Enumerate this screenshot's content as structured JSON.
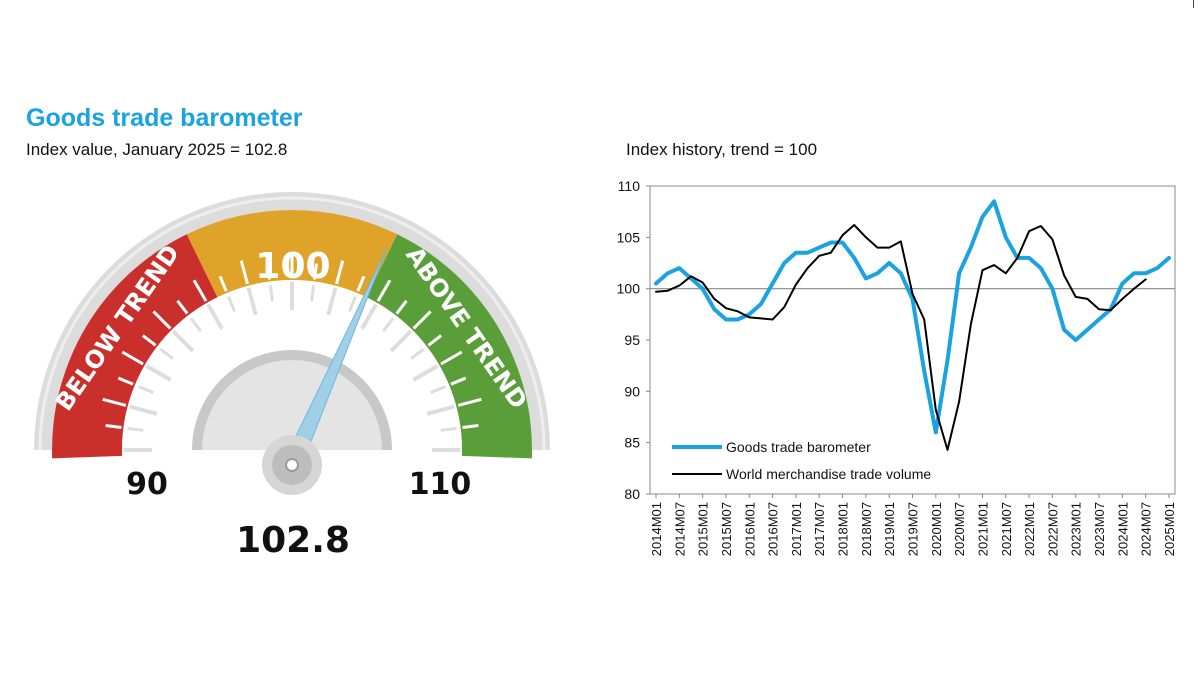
{
  "header": {
    "title": "Goods trade barometer",
    "subtitle": "Index value, January 2025 = 102.8"
  },
  "gauge": {
    "value": 102.8,
    "value_label": "102.8",
    "min_label": "90",
    "max_label": "110",
    "trend_label": "100",
    "below_label": "BELOW TREND",
    "above_label": "ABOVE TREND",
    "colors": {
      "below": "#c9302c",
      "trend": "#e0a32a",
      "above": "#5a9e3a",
      "needle": "#9fd0e8"
    }
  },
  "chart_data": {
    "type": "line",
    "title": "Index history, trend = 100",
    "ylim": [
      80,
      110
    ],
    "yticks": [
      "80",
      "85",
      "90",
      "95",
      "100",
      "105",
      "110"
    ],
    "reference_line": 100,
    "x_tick_labels": [
      "2014M01",
      "2014M07",
      "2015M01",
      "2015M07",
      "2016M01",
      "2016M07",
      "2017M01",
      "2017M07",
      "2018M01",
      "2018M07",
      "2019M01",
      "2019M07",
      "2020M01",
      "2020M07",
      "2021M01",
      "2021M07",
      "2022M01",
      "2022M07",
      "2023M01",
      "2023M07",
      "2024M01",
      "2024M07",
      "2025M01"
    ],
    "legend_position": "bottom-left",
    "series": [
      {
        "name": "Goods trade barometer",
        "color": "#1aa3e0",
        "x": [
          "2014M01",
          "2014M04",
          "2014M07",
          "2014M10",
          "2015M01",
          "2015M04",
          "2015M07",
          "2015M10",
          "2016M01",
          "2016M04",
          "2016M07",
          "2016M10",
          "2017M01",
          "2017M04",
          "2017M07",
          "2017M10",
          "2018M01",
          "2018M04",
          "2018M07",
          "2018M10",
          "2019M01",
          "2019M04",
          "2019M07",
          "2019M10",
          "2020M01",
          "2020M04",
          "2020M07",
          "2020M10",
          "2021M01",
          "2021M04",
          "2021M07",
          "2021M10",
          "2022M01",
          "2022M04",
          "2022M07",
          "2022M10",
          "2023M01",
          "2023M04",
          "2023M07",
          "2023M10",
          "2024M01",
          "2024M04",
          "2024M07",
          "2024M10",
          "2025M01"
        ],
        "values": [
          100.5,
          101.5,
          102.0,
          101.0,
          100.0,
          98.0,
          97.0,
          97.0,
          97.5,
          98.5,
          100.5,
          102.5,
          103.5,
          103.5,
          104.0,
          104.5,
          104.5,
          103.0,
          101.0,
          101.5,
          102.5,
          101.5,
          99.0,
          92.0,
          86.0,
          93.0,
          101.5,
          104.0,
          107.0,
          108.5,
          105.0,
          103.0,
          103.0,
          102.0,
          100.0,
          96.0,
          95.0,
          96.0,
          97.0,
          98.0,
          100.5,
          101.5,
          101.5,
          102.0,
          103.0
        ]
      },
      {
        "name": "World merchandise trade volume",
        "color": "#000000",
        "x": [
          "2014M01",
          "2014M04",
          "2014M07",
          "2014M10",
          "2015M01",
          "2015M04",
          "2015M07",
          "2015M10",
          "2016M01",
          "2016M04",
          "2016M07",
          "2016M10",
          "2017M01",
          "2017M04",
          "2017M07",
          "2017M10",
          "2018M01",
          "2018M04",
          "2018M07",
          "2018M10",
          "2019M01",
          "2019M04",
          "2019M07",
          "2019M10",
          "2020M01",
          "2020M04",
          "2020M07",
          "2020M10",
          "2021M01",
          "2021M04",
          "2021M07",
          "2021M10",
          "2022M01",
          "2022M04",
          "2022M07",
          "2022M10",
          "2023M01",
          "2023M04",
          "2023M07",
          "2023M10",
          "2024M01",
          "2024M04",
          "2024M07"
        ],
        "values": [
          99.7,
          99.8,
          100.3,
          101.2,
          100.6,
          99.0,
          98.1,
          97.8,
          97.2,
          97.1,
          97.0,
          98.2,
          100.4,
          102.0,
          103.2,
          103.5,
          105.2,
          106.2,
          105.0,
          104.0,
          104.0,
          104.6,
          99.5,
          97.0,
          88.2,
          84.3,
          89.0,
          96.5,
          101.8,
          102.3,
          101.5,
          103.0,
          105.6,
          106.1,
          104.8,
          101.3,
          99.2,
          99.0,
          98.0,
          97.9,
          99.0,
          100.0,
          100.9
        ]
      }
    ]
  }
}
